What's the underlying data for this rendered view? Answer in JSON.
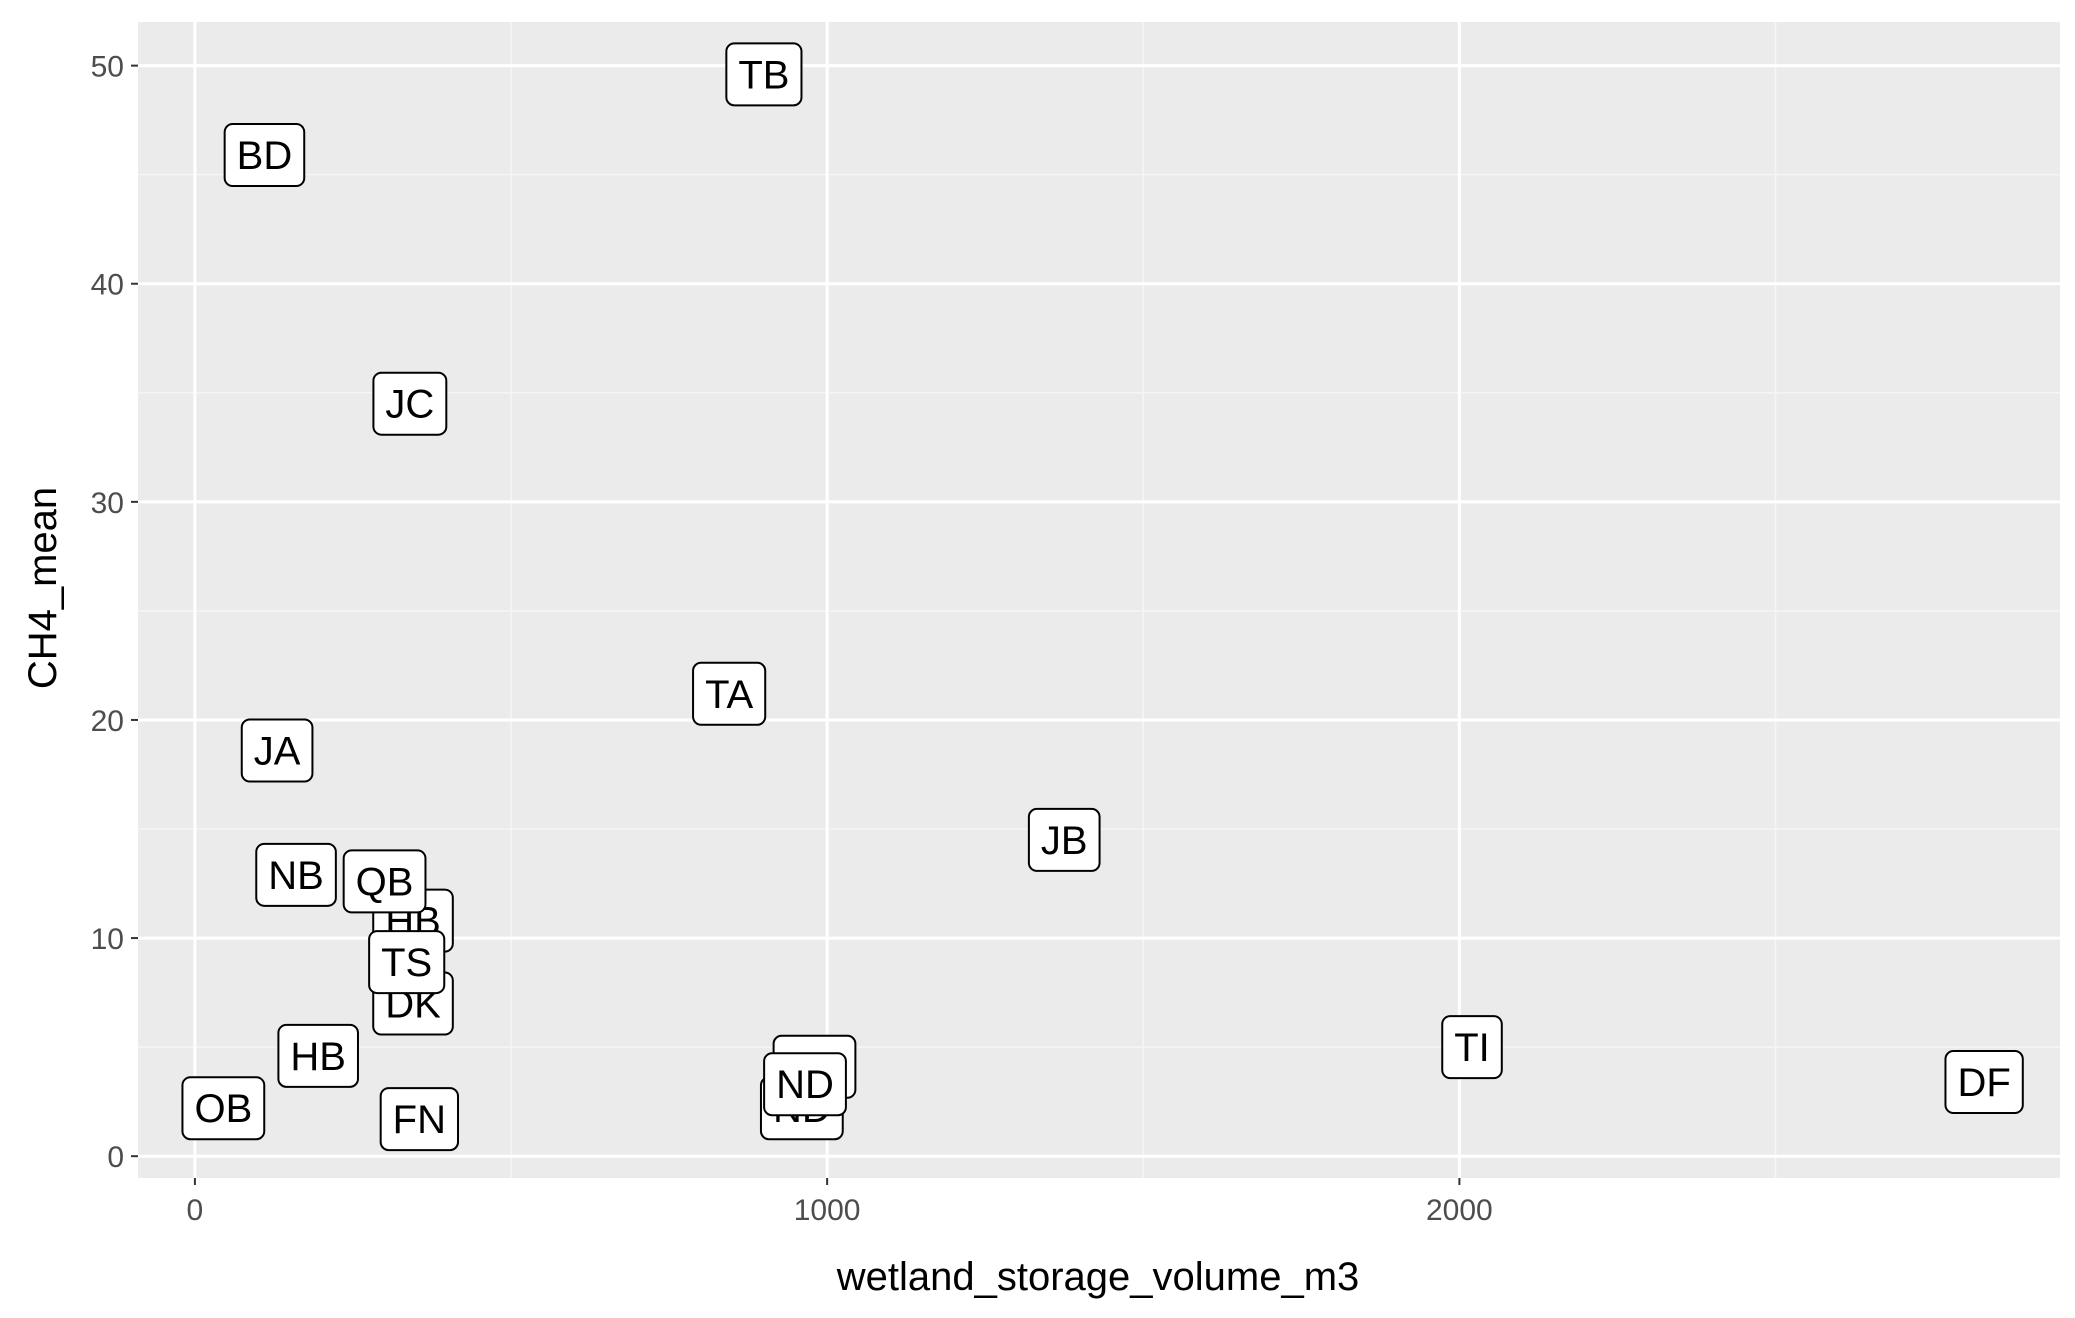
{
  "chart_data": {
    "type": "scatter",
    "title": "",
    "xlabel": "wetland_storage_volume_m3",
    "ylabel": "CH4_mean",
    "xlim": [
      -90,
      2950
    ],
    "ylim": [
      -1.0,
      52.0
    ],
    "x_ticks": [
      0,
      1000,
      2000
    ],
    "y_ticks": [
      0,
      10,
      20,
      30,
      40,
      50
    ],
    "grid": true,
    "point_style": "text labels in rounded boxes",
    "colors": {
      "panel_background": "#ebebeb",
      "grid_major": "#ffffff",
      "grid_minor": "#f5f5f5",
      "tick_label": "#4d4d4d",
      "label_fill": "#ffffff",
      "label_border": "#000000"
    },
    "points": [
      {
        "label": "TB",
        "x": 900,
        "y": 49.6
      },
      {
        "label": "BD",
        "x": 110,
        "y": 45.9
      },
      {
        "label": "JC",
        "x": 340,
        "y": 34.5
      },
      {
        "label": "TA",
        "x": 845,
        "y": 21.2
      },
      {
        "label": "JA",
        "x": 130,
        "y": 18.6
      },
      {
        "label": "JB",
        "x": 1375,
        "y": 14.5
      },
      {
        "label": "NB",
        "x": 160,
        "y": 12.9
      },
      {
        "label": "HB",
        "x": 345,
        "y": 10.8
      },
      {
        "label": "QB",
        "x": 300,
        "y": 12.6
      },
      {
        "label": "DK",
        "x": 345,
        "y": 7.0
      },
      {
        "label": "TS",
        "x": 335,
        "y": 8.9
      },
      {
        "label": "HB",
        "x": 195,
        "y": 4.6
      },
      {
        "label": "OB",
        "x": 45,
        "y": 2.2
      },
      {
        "label": "FN",
        "x": 355,
        "y": 1.7
      },
      {
        "label": "ND",
        "x": 980,
        "y": 4.1
      },
      {
        "label": "ND",
        "x": 960,
        "y": 2.2
      },
      {
        "label": "ND",
        "x": 965,
        "y": 3.3
      },
      {
        "label": "TI",
        "x": 2020,
        "y": 5.0
      },
      {
        "label": "DF",
        "x": 2830,
        "y": 3.4
      }
    ]
  }
}
